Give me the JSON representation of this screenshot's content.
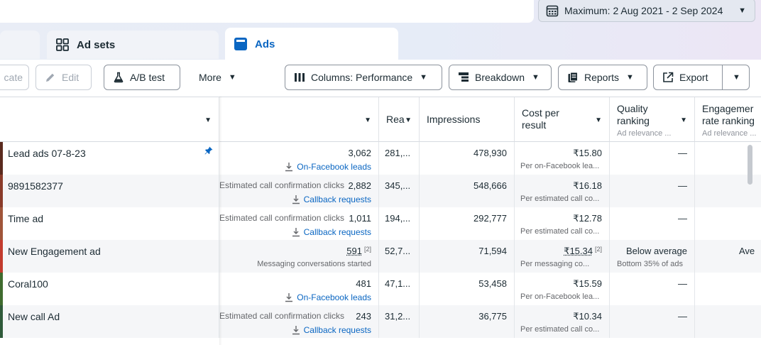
{
  "date_range": {
    "label": "Maximum: 2 Aug 2021 - 2 Sep 2024"
  },
  "tabs": {
    "adsets": "Ad sets",
    "ads": "Ads"
  },
  "toolbar": {
    "duplicate": "cate",
    "edit": "Edit",
    "ab_test": "A/B test",
    "more": "More",
    "columns": "Columns: Performance",
    "breakdown": "Breakdown",
    "reports": "Reports",
    "export": "Export"
  },
  "columns": {
    "reach": "Rea",
    "impressions": "Impressions",
    "cost_per_result": [
      "Cost per",
      "result"
    ],
    "quality_ranking": [
      "Quality",
      "ranking"
    ],
    "quality_sub": "Ad relevance ...",
    "engagement_ranking": [
      "Engagemer",
      "rate ranking"
    ],
    "engagement_sub": "Ad relevance ..."
  },
  "rows": [
    {
      "name": "Lead ads 07-8-23",
      "pinned": true,
      "result_label": "",
      "results": "3,062",
      "result_type": "On-Facebook leads",
      "reach": "281,...",
      "impressions": "478,930",
      "cost": "₹15.80",
      "cost_sub": "Per on-Facebook lea...",
      "quality": "—",
      "quality_sub": "",
      "engagement": "",
      "thumb_color": "#5a2a1e"
    },
    {
      "name": "9891582377",
      "pinned": false,
      "result_label": "Estimated call confirmation clicks",
      "results": "2,882",
      "result_type": "Callback requests",
      "reach": "345,...",
      "impressions": "548,666",
      "cost": "₹16.18",
      "cost_sub": "Per estimated call co...",
      "quality": "—",
      "quality_sub": "",
      "engagement": "",
      "thumb_color": "#8a3b2a"
    },
    {
      "name": "Time ad",
      "pinned": false,
      "result_label": "Estimated call confirmation clicks",
      "results": "1,011",
      "result_type": "Callback requests",
      "reach": "194,...",
      "impressions": "292,777",
      "cost": "₹12.78",
      "cost_sub": "Per estimated call co...",
      "quality": "—",
      "quality_sub": "",
      "engagement": "",
      "thumb_color": "#a0553a"
    },
    {
      "name": "New Engagement ad",
      "pinned": false,
      "result_label": "",
      "results": "591",
      "results_note": "[2]",
      "result_type": "Messaging conversations started",
      "reach": "52,7...",
      "impressions": "71,594",
      "cost": "₹15.34",
      "cost_note": "[2]",
      "cost_sub": "Per messaging co...",
      "quality": "Below average",
      "quality_sub": "Bottom 35% of ads",
      "engagement": "Ave",
      "thumb_color": "#c23b2e"
    },
    {
      "name": "Coral100",
      "pinned": false,
      "result_label": "",
      "results": "481",
      "result_type": "On-Facebook leads",
      "reach": "47,1...",
      "impressions": "53,458",
      "cost": "₹15.59",
      "cost_sub": "Per on-Facebook lea...",
      "quality": "—",
      "quality_sub": "",
      "engagement": "",
      "thumb_color": "#3f6b2f"
    },
    {
      "name": "New call Ad",
      "pinned": false,
      "result_label": "Estimated call confirmation clicks",
      "results": "243",
      "result_type": "Callback requests",
      "reach": "31,2...",
      "impressions": "36,775",
      "cost": "₹10.34",
      "cost_sub": "Per estimated call co...",
      "quality": "—",
      "quality_sub": "",
      "engagement": "",
      "thumb_color": "#2f5a3a"
    }
  ],
  "colors": {
    "accent": "#0a66c2",
    "text": "#1c2b33",
    "muted": "#65676b"
  }
}
